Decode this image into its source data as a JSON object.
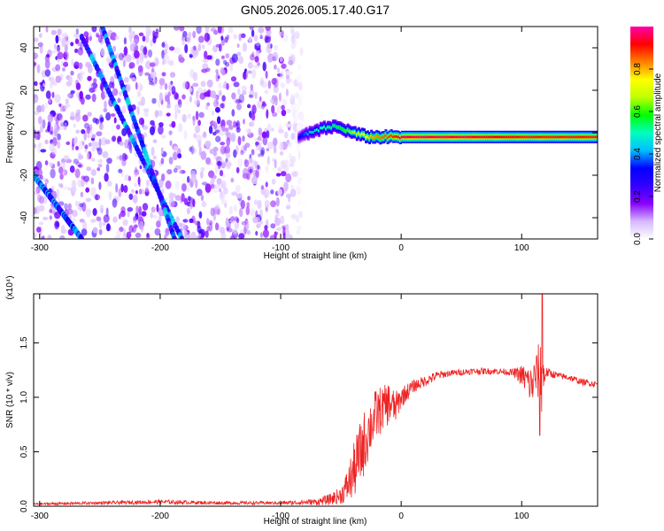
{
  "title": "GN05.2026.005.17.40.G17",
  "chart_data": [
    {
      "type": "heatmap",
      "title": "GN05.2026.005.17.40.G17",
      "xlabel": "Height of straight line (km)",
      "ylabel": "Frequency (Hz)",
      "xlim": [
        -305,
        163
      ],
      "ylim": [
        -50,
        50
      ],
      "x_ticks": [
        {
          "value": -300,
          "label": "-300"
        },
        {
          "value": -200,
          "label": "-200"
        },
        {
          "value": -100,
          "label": "-100"
        },
        {
          "value": 0,
          "label": "0"
        },
        {
          "value": 100,
          "label": "100"
        }
      ],
      "y_ticks": [
        {
          "value": -40,
          "label": "-40"
        },
        {
          "value": -20,
          "label": "-20"
        },
        {
          "value": 0,
          "label": "0"
        },
        {
          "value": 20,
          "label": "20"
        },
        {
          "value": 40,
          "label": "40"
        }
      ],
      "colorbar": {
        "label": "Normalized spectral amplitude",
        "range": [
          0,
          1
        ],
        "ticks": [
          {
            "value": 0.0,
            "label": "0.0"
          },
          {
            "value": 0.2,
            "label": "0.2"
          },
          {
            "value": 0.4,
            "label": "0.4"
          },
          {
            "value": 0.6,
            "label": "0.6"
          },
          {
            "value": 0.8,
            "label": "0.8"
          }
        ],
        "colors": [
          "#ffffff",
          "#d6b8ff",
          "#8800ff",
          "#3300ff",
          "#0000ff",
          "#00bfff",
          "#00ffbf",
          "#00ff00",
          "#bfff00",
          "#ffff00",
          "#ff8000",
          "#ff0000",
          "#ff00aa"
        ]
      },
      "dominant_tone": {
        "description_x": [
          -85,
          -75,
          -65,
          -55,
          -45,
          -35,
          -25,
          -15,
          -5,
          0,
          50,
          100,
          163
        ],
        "freq": [
          -2,
          0,
          2,
          3,
          1,
          -1,
          -2,
          -2,
          -2,
          -2,
          -2,
          -2,
          -2
        ],
        "amplitude": [
          0.3,
          0.45,
          0.5,
          0.55,
          0.6,
          0.7,
          0.8,
          0.85,
          0.9,
          0.95,
          0.95,
          0.9,
          0.9
        ]
      },
      "chirp_tracks": [
        {
          "x": [
            -265,
            -182
          ],
          "freq": [
            45,
            -50
          ]
        },
        {
          "x": [
            -248,
            -188
          ],
          "freq": [
            50,
            -50
          ]
        },
        {
          "x": [
            -305,
            -265
          ],
          "freq": [
            -20,
            -50
          ]
        }
      ],
      "noise_region_x": [
        -305,
        -80
      ]
    },
    {
      "type": "line",
      "xlabel": "Height of straight line (km)",
      "ylabel": "SNR (10 * v/v)",
      "y_multiplier": "(x10⁴)",
      "xlim": [
        -305,
        163
      ],
      "ylim": [
        0,
        1.95
      ],
      "x_ticks": [
        {
          "value": -300,
          "label": "-300"
        },
        {
          "value": -200,
          "label": "-200"
        },
        {
          "value": -100,
          "label": "-100"
        },
        {
          "value": 0,
          "label": "0"
        },
        {
          "value": 100,
          "label": "100"
        }
      ],
      "y_ticks": [
        {
          "value": 0.0,
          "label": "0.0"
        },
        {
          "value": 0.5,
          "label": "0.5"
        },
        {
          "value": 1.0,
          "label": "1.0"
        },
        {
          "value": 1.5,
          "label": "1.5"
        }
      ],
      "series": [
        {
          "color": "#ee2222",
          "x": [
            -305,
            -250,
            -200,
            -150,
            -100,
            -70,
            -60,
            -50,
            -45,
            -40,
            -35,
            -30,
            -25,
            -20,
            -15,
            -10,
            -5,
            0,
            5,
            10,
            20,
            30,
            40,
            50,
            60,
            70,
            80,
            90,
            95,
            100,
            105,
            108,
            112,
            115,
            117,
            120,
            130,
            140,
            150,
            163
          ],
          "y": [
            0.02,
            0.03,
            0.04,
            0.03,
            0.03,
            0.04,
            0.06,
            0.1,
            0.18,
            0.3,
            0.45,
            0.6,
            0.75,
            0.85,
            0.9,
            0.95,
            0.9,
            1.0,
            1.05,
            1.1,
            1.15,
            1.2,
            1.22,
            1.23,
            1.24,
            1.24,
            1.24,
            1.23,
            1.22,
            1.2,
            1.15,
            1.1,
            1.2,
            1.25,
            1.15,
            1.23,
            1.2,
            1.18,
            1.14,
            1.12
          ],
          "noise": [
            0.01,
            0.015,
            0.02,
            0.015,
            0.015,
            0.03,
            0.05,
            0.08,
            0.15,
            0.25,
            0.3,
            0.3,
            0.25,
            0.25,
            0.2,
            0.2,
            0.15,
            0.1,
            0.08,
            0.06,
            0.05,
            0.04,
            0.03,
            0.03,
            0.03,
            0.03,
            0.03,
            0.03,
            0.05,
            0.1,
            0.15,
            0.2,
            0.2,
            0.3,
            0.35,
            0.05,
            0.03,
            0.03,
            0.03,
            0.03
          ]
        }
      ]
    }
  ]
}
